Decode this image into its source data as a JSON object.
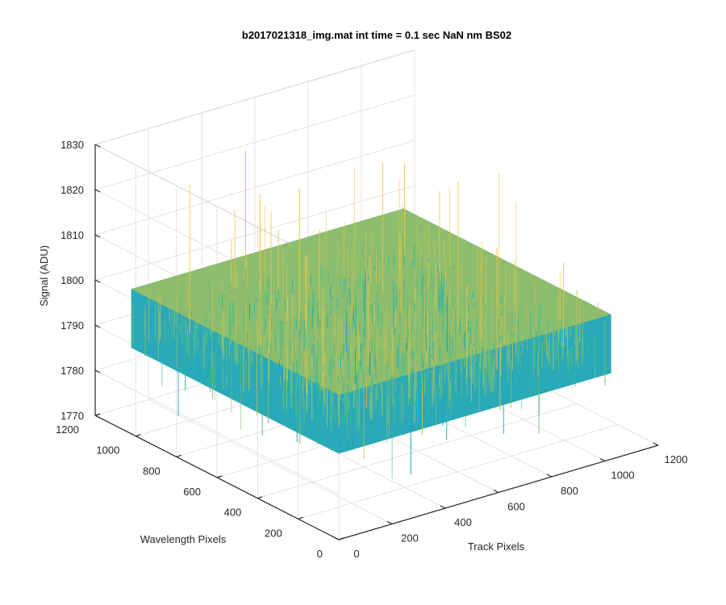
{
  "chart_data": {
    "type": "surface",
    "title": "b2017021318_img.mat int time = 0.1 sec  NaN nm BS02",
    "xlabel": "Track Pixels",
    "ylabel": "Wavelength Pixels",
    "zlabel": "Signal (ADU)",
    "xlim": [
      0,
      1200
    ],
    "ylim": [
      0,
      1200
    ],
    "zlim": [
      1770,
      1830
    ],
    "xticks": [
      0,
      200,
      400,
      600,
      800,
      1000,
      1200
    ],
    "yticks": [
      0,
      200,
      400,
      600,
      800,
      1000,
      1200
    ],
    "zticks": [
      1770,
      1780,
      1790,
      1800,
      1810,
      1820,
      1830
    ],
    "surface": {
      "x_range": [
        1,
        1024
      ],
      "y_range": [
        1,
        1024
      ],
      "z_mean": 1795,
      "z_typical_range": [
        1785,
        1808
      ],
      "z_spike_range": [
        1772,
        1828
      ]
    },
    "grid": true,
    "colormap": [
      "#0d87c9",
      "#14a4c4",
      "#2fb89e",
      "#7cbf73",
      "#c3c255",
      "#f0c541"
    ]
  }
}
